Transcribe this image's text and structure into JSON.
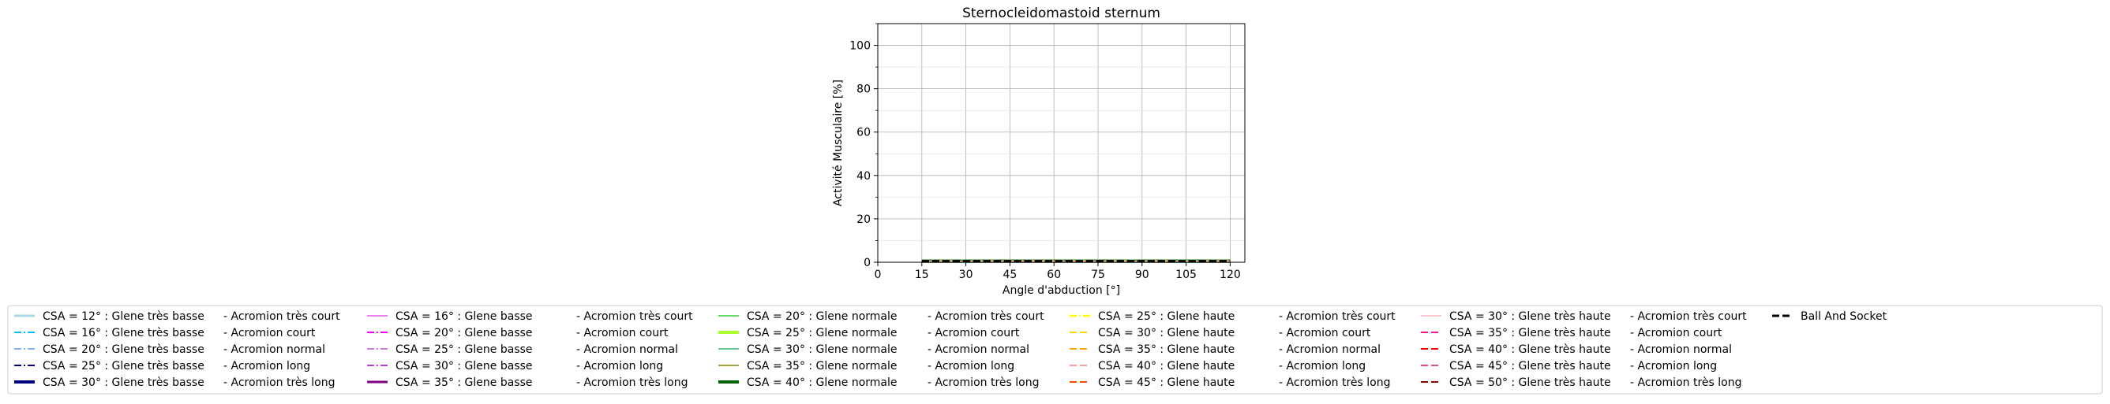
{
  "chart_data": {
    "type": "line",
    "title": "Sternocleidomastoid sternum",
    "xlabel": "Angle d'abduction [°]",
    "ylabel": "Activité Musculaire [%]",
    "xlim": [
      0,
      125
    ],
    "ylim": [
      0,
      110
    ],
    "xticks": [
      0,
      15,
      30,
      45,
      60,
      75,
      90,
      105,
      120
    ],
    "yticks": [
      0,
      20,
      40,
      60,
      80,
      100
    ],
    "grid": true,
    "legend_placement": "bottom",
    "x": [
      15,
      30,
      45,
      60,
      75,
      90,
      105,
      120
    ],
    "series": [
      {
        "name": "CSA = 12° : Glene très basse",
        "acromion": "- Acromion très court",
        "color": "#add8e6",
        "dash": "solid",
        "width": 3,
        "values": [
          0.5,
          0.5,
          0.5,
          0.5,
          0.5,
          0.5,
          0.5,
          0.5
        ]
      },
      {
        "name": "CSA = 16° : Glene très basse",
        "acromion": "- Acromion court",
        "color": "#00bfff",
        "dash": "dashdot",
        "width": 2,
        "values": [
          0.5,
          0.5,
          0.5,
          0.5,
          0.5,
          0.5,
          0.5,
          0.5
        ]
      },
      {
        "name": "CSA = 20° : Glene très basse",
        "acromion": "- Acromion normal",
        "color": "#6495ed",
        "dash": "dashdot",
        "width": 1.5,
        "values": [
          0.5,
          0.5,
          0.5,
          0.5,
          0.5,
          0.5,
          0.5,
          0.5
        ]
      },
      {
        "name": "CSA = 25° : Glene très basse",
        "acromion": "- Acromion long",
        "color": "#00008b",
        "dash": "dashdot",
        "width": 2,
        "values": [
          0.5,
          0.5,
          0.5,
          0.5,
          0.5,
          0.5,
          0.5,
          0.5
        ]
      },
      {
        "name": "CSA = 30° : Glene très basse",
        "acromion": "- Acromion très long",
        "color": "#000080",
        "dash": "solid",
        "width": 4,
        "values": [
          0.5,
          0.5,
          0.5,
          0.5,
          0.5,
          0.5,
          0.5,
          0.5
        ]
      },
      {
        "name": "CSA = 16° : Glene basse",
        "acromion": "- Acromion très court",
        "color": "#ee82ee",
        "dash": "solid",
        "width": 2,
        "values": [
          0.5,
          0.5,
          0.5,
          0.5,
          0.5,
          0.5,
          0.5,
          0.5
        ]
      },
      {
        "name": "CSA = 20° : Glene basse",
        "acromion": "- Acromion court",
        "color": "#ff00ff",
        "dash": "dashdot",
        "width": 2,
        "values": [
          0.5,
          0.5,
          0.5,
          0.5,
          0.5,
          0.5,
          0.5,
          0.5
        ]
      },
      {
        "name": "CSA = 25° : Glene basse",
        "acromion": "- Acromion normal",
        "color": "#ba55d3",
        "dash": "dashdot",
        "width": 1.5,
        "values": [
          0.5,
          0.5,
          0.5,
          0.5,
          0.5,
          0.5,
          0.5,
          0.5
        ]
      },
      {
        "name": "CSA = 30° : Glene basse",
        "acromion": "- Acromion long",
        "color": "#9400d3",
        "dash": "dashdot",
        "width": 1.5,
        "values": [
          0.5,
          0.5,
          0.5,
          0.5,
          0.5,
          0.5,
          0.5,
          0.5
        ]
      },
      {
        "name": "CSA = 35° : Glene basse",
        "acromion": "- Acromion très long",
        "color": "#800080",
        "dash": "solid",
        "width": 3,
        "values": [
          0.5,
          0.5,
          0.5,
          0.5,
          0.5,
          0.5,
          0.5,
          0.5
        ]
      },
      {
        "name": "CSA = 20° : Glene normale",
        "acromion": "- Acromion très court",
        "color": "#32cd32",
        "dash": "solid",
        "width": 1.5,
        "values": [
          0.5,
          0.5,
          0.5,
          0.5,
          0.5,
          0.5,
          0.5,
          0.5
        ]
      },
      {
        "name": "CSA = 25° : Glene normale",
        "acromion": "- Acromion court",
        "color": "#adff2f",
        "dash": "solid",
        "width": 4,
        "values": [
          0.5,
          0.5,
          0.5,
          0.5,
          0.5,
          0.5,
          0.5,
          0.5
        ]
      },
      {
        "name": "CSA = 30° : Glene normale",
        "acromion": "- Acromion normal",
        "color": "#3cb371",
        "dash": "solid",
        "width": 1.5,
        "values": [
          0.5,
          0.5,
          0.5,
          0.5,
          0.5,
          0.5,
          0.5,
          0.5
        ]
      },
      {
        "name": "CSA = 35° : Glene normale",
        "acromion": "- Acromion long",
        "color": "#808000",
        "dash": "solid",
        "width": 1.5,
        "values": [
          0.5,
          0.5,
          0.5,
          0.5,
          0.5,
          0.5,
          0.5,
          0.5
        ]
      },
      {
        "name": "CSA = 40° : Glene normale",
        "acromion": "- Acromion très long",
        "color": "#006400",
        "dash": "solid",
        "width": 4,
        "values": [
          0.5,
          0.5,
          0.5,
          0.5,
          0.5,
          0.5,
          0.5,
          0.5
        ]
      },
      {
        "name": "CSA = 25° : Glene haute",
        "acromion": "- Acromion très court",
        "color": "#ffff00",
        "dash": "dashdot",
        "width": 2.5,
        "values": [
          0.5,
          0.5,
          0.5,
          0.5,
          0.5,
          0.5,
          0.5,
          0.5
        ]
      },
      {
        "name": "CSA = 30° : Glene haute",
        "acromion": "- Acromion court",
        "color": "#ffd700",
        "dash": "dashed",
        "width": 2,
        "values": [
          0.5,
          0.5,
          0.5,
          0.5,
          0.5,
          0.5,
          0.5,
          0.5
        ]
      },
      {
        "name": "CSA = 35° : Glene haute",
        "acromion": "- Acromion normal",
        "color": "#ffa500",
        "dash": "dashed",
        "width": 2,
        "values": [
          0.5,
          0.5,
          0.5,
          0.5,
          0.5,
          0.5,
          0.5,
          0.5
        ]
      },
      {
        "name": "CSA = 40° : Glene haute",
        "acromion": "- Acromion long",
        "color": "#fa8072",
        "dash": "dashed",
        "width": 1.5,
        "values": [
          0.5,
          0.5,
          0.5,
          0.5,
          0.5,
          0.5,
          0.5,
          0.5
        ]
      },
      {
        "name": "CSA = 45° : Glene haute",
        "acromion": "- Acromion très long",
        "color": "#ff4500",
        "dash": "dashed",
        "width": 2,
        "values": [
          0.5,
          0.5,
          0.5,
          0.5,
          0.5,
          0.5,
          0.5,
          0.5
        ]
      },
      {
        "name": "CSA = 30° : Glene très haute",
        "acromion": "- Acromion très court",
        "color": "#ffb6c1",
        "dash": "solid",
        "width": 1.5,
        "values": [
          0.5,
          0.5,
          0.5,
          0.5,
          0.5,
          0.5,
          0.5,
          0.5
        ]
      },
      {
        "name": "CSA = 35° : Glene très haute",
        "acromion": "- Acromion court",
        "color": "#ff1493",
        "dash": "dashed",
        "width": 2,
        "values": [
          0.5,
          0.5,
          0.5,
          0.5,
          0.5,
          0.5,
          0.5,
          0.5
        ]
      },
      {
        "name": "CSA = 40° : Glene très haute",
        "acromion": "- Acromion normal",
        "color": "#ff0000",
        "dash": "dashed",
        "width": 2,
        "values": [
          0.5,
          0.5,
          0.5,
          0.5,
          0.5,
          0.5,
          0.5,
          0.5
        ]
      },
      {
        "name": "CSA = 45° : Glene très haute",
        "acromion": "- Acromion long",
        "color": "#dc143c",
        "dash": "dashed",
        "width": 1.5,
        "values": [
          0.5,
          0.5,
          0.5,
          0.5,
          0.5,
          0.5,
          0.5,
          0.5
        ]
      },
      {
        "name": "CSA = 50° : Glene très haute",
        "acromion": "- Acromion très long",
        "color": "#8b0000",
        "dash": "dashed",
        "width": 2,
        "values": [
          0.5,
          0.5,
          0.5,
          0.5,
          0.5,
          0.5,
          0.5,
          0.5
        ]
      },
      {
        "name": "Ball And Socket",
        "acromion": "",
        "color": "#000000",
        "dash": "dashed",
        "width": 3,
        "values": [
          0.5,
          0.5,
          0.5,
          0.5,
          0.5,
          0.5,
          0.5,
          0.5
        ]
      }
    ]
  }
}
